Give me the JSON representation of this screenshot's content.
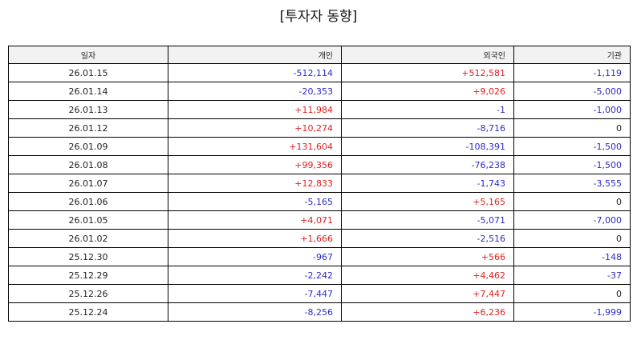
{
  "title": "[투자자 동향]",
  "colors": {
    "positive": "#e02020",
    "negative": "#2a2ac8",
    "zero": "#222222"
  },
  "table": {
    "headers": [
      "일자",
      "개인",
      "외국인",
      "기관"
    ],
    "rows": [
      [
        "26.01.15",
        "-512,114",
        "+512,581",
        "-1,119"
      ],
      [
        "26.01.14",
        "-20,353",
        "+9,026",
        "-5,000"
      ],
      [
        "26.01.13",
        "+11,984",
        "-1",
        "-1,000"
      ],
      [
        "26.01.12",
        "+10,274",
        "-8,716",
        "0"
      ],
      [
        "26.01.09",
        "+131,604",
        "-108,391",
        "-1,500"
      ],
      [
        "26.01.08",
        "+99,356",
        "-76,238",
        "-1,500"
      ],
      [
        "26.01.07",
        "+12,833",
        "-1,743",
        "-3,555"
      ],
      [
        "26.01.06",
        "-5,165",
        "+5,165",
        "0"
      ],
      [
        "26.01.05",
        "+4,071",
        "-5,071",
        "-7,000"
      ],
      [
        "26.01.02",
        "+1,666",
        "-2,516",
        "0"
      ],
      [
        "25.12.30",
        "-967",
        "+566",
        "-148"
      ],
      [
        "25.12.29",
        "-2,242",
        "+4,462",
        "-37"
      ],
      [
        "25.12.26",
        "-7,447",
        "+7,447",
        "0"
      ],
      [
        "25.12.24",
        "-8,256",
        "+6,236",
        "-1,999"
      ]
    ]
  }
}
